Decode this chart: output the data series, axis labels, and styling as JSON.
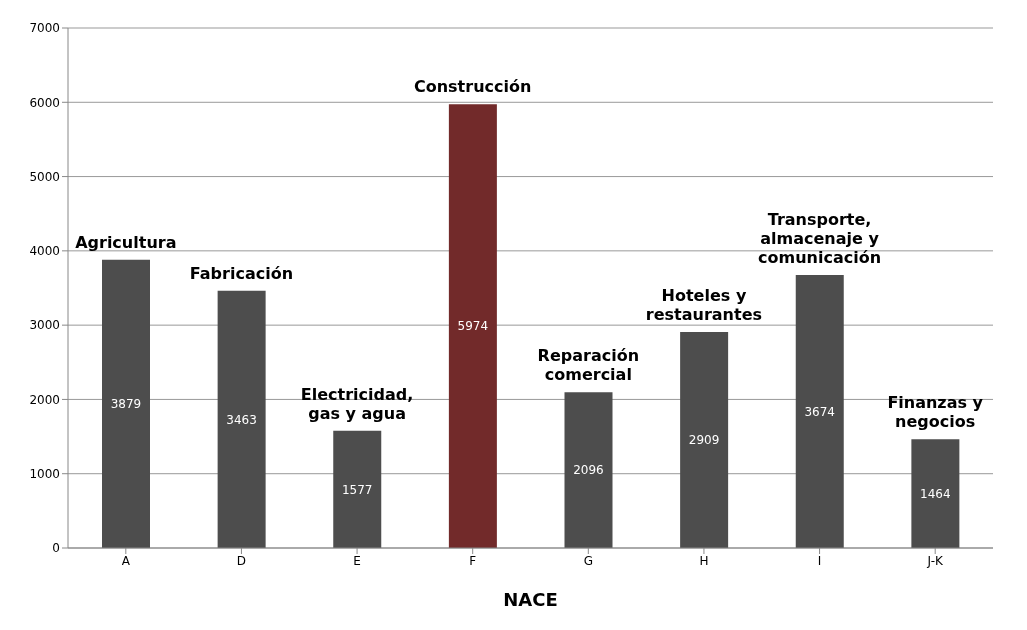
{
  "chart_data": {
    "type": "bar",
    "xlabel": "NACE",
    "categories": [
      "A",
      "D",
      "E",
      "F",
      "G",
      "H",
      "I",
      "J-K"
    ],
    "values": [
      3879,
      3463,
      1577,
      5974,
      2096,
      2909,
      3674,
      1464
    ],
    "colors": [
      "#4d4d4d",
      "#4d4d4d",
      "#4d4d4d",
      "#722a2a",
      "#4d4d4d",
      "#4d4d4d",
      "#4d4d4d",
      "#4d4d4d"
    ],
    "ylim": [
      0,
      7000
    ],
    "yticks": [
      0,
      1000,
      2000,
      3000,
      4000,
      5000,
      6000,
      7000
    ],
    "grid": "y",
    "data_labels": true,
    "annotations": [
      {
        "text": "Agricultura",
        "x": "A",
        "y": 3879
      },
      {
        "text": "Fabricación",
        "x": "D",
        "y": 3463
      },
      {
        "text": "Electricidad, gas y agua",
        "x": "E",
        "y": 1577
      },
      {
        "text": "Construcción",
        "x": "F",
        "y": 5974
      },
      {
        "text": "Reparación comercial",
        "x": "G",
        "y": 2096
      },
      {
        "text": "Hoteles y restaurantes",
        "x": "H",
        "y": 2909
      },
      {
        "text": "Transporte, almacenaje y comunicación",
        "x": "I",
        "y": 3674
      },
      {
        "text": "Finanzas y negocios",
        "x": "J-K",
        "y": 1464
      }
    ]
  }
}
